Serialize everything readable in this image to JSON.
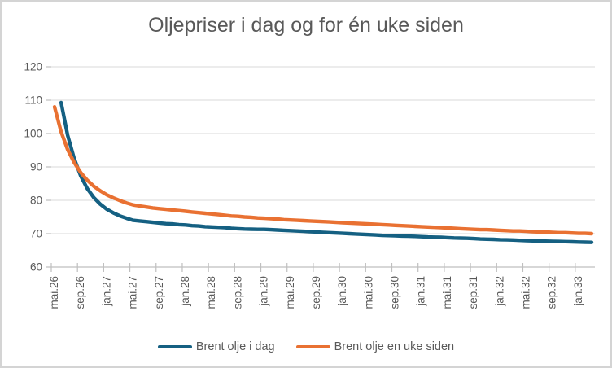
{
  "title": "Oljepriser i dag og for én uke siden",
  "colors": {
    "series_today": "#156082",
    "series_week_ago": "#E97132",
    "gridline": "#D9D9D9",
    "axis": "#BFBFBF",
    "text": "#595959",
    "chart_border": "#D4D4D4",
    "background": "#FFFFFF"
  },
  "legend": {
    "items": [
      {
        "label": "Brent olje i dag",
        "color": "#156082"
      },
      {
        "label": "Brent olje en uke siden",
        "color": "#E97132"
      }
    ]
  },
  "chart_data": {
    "type": "line",
    "title": "Oljepriser i dag og for én uke siden",
    "xlabel": "",
    "ylabel": "",
    "ylim": [
      60,
      120
    ],
    "y_ticks": [
      60,
      70,
      80,
      90,
      100,
      110,
      120
    ],
    "grid": "horizontal",
    "legend_position": "bottom",
    "x_tick_interval": 4,
    "x_tick_labels": [
      "mai.26",
      "sep.26",
      "jan.27",
      "mai.27",
      "sep.27",
      "jan.28",
      "mai.28",
      "sep.28",
      "jan.29",
      "mai.29",
      "sep.29",
      "jan.30",
      "mai.30",
      "sep.30",
      "jan.31",
      "mai.31",
      "sep.31",
      "jan.32",
      "mai.32",
      "sep.32",
      "jan.33"
    ],
    "categories": [
      "mai.26",
      "jun.26",
      "jul.26",
      "aug.26",
      "sep.26",
      "okt.26",
      "nov.26",
      "des.26",
      "jan.27",
      "feb.27",
      "mar.27",
      "apr.27",
      "mai.27",
      "jun.27",
      "jul.27",
      "aug.27",
      "sep.27",
      "okt.27",
      "nov.27",
      "des.27",
      "jan.28",
      "feb.28",
      "mar.28",
      "apr.28",
      "mai.28",
      "jun.28",
      "jul.28",
      "aug.28",
      "sep.28",
      "okt.28",
      "nov.28",
      "des.28",
      "jan.29",
      "feb.29",
      "mar.29",
      "apr.29",
      "mai.29",
      "jun.29",
      "jul.29",
      "aug.29",
      "sep.29",
      "okt.29",
      "nov.29",
      "des.29",
      "jan.30",
      "feb.30",
      "mar.30",
      "apr.30",
      "mai.30",
      "jun.30",
      "jul.30",
      "aug.30",
      "sep.30",
      "okt.30",
      "nov.30",
      "des.30",
      "jan.31",
      "feb.31",
      "mar.31",
      "apr.31",
      "mai.31",
      "jun.31",
      "jul.31",
      "aug.31",
      "sep.31",
      "okt.31",
      "nov.31",
      "des.31",
      "jan.32",
      "feb.32",
      "mar.32",
      "apr.32",
      "mai.32",
      "jun.32",
      "jul.32",
      "aug.32",
      "sep.32",
      "okt.32",
      "nov.32",
      "des.32",
      "jan.33",
      "feb.33",
      "mar.33"
    ],
    "series": [
      {
        "name": "Brent olje i dag",
        "color": "#156082",
        "values": [
          null,
          109.3,
          99.5,
          92.5,
          87.3,
          83.5,
          80.8,
          78.8,
          77.3,
          76.2,
          75.3,
          74.6,
          74.0,
          73.8,
          73.6,
          73.4,
          73.2,
          73.0,
          72.9,
          72.7,
          72.6,
          72.4,
          72.3,
          72.1,
          72.0,
          71.9,
          71.8,
          71.6,
          71.5,
          71.4,
          71.35,
          71.3,
          71.3,
          71.2,
          71.1,
          71.0,
          70.9,
          70.8,
          70.7,
          70.6,
          70.5,
          70.4,
          70.3,
          70.2,
          70.1,
          70.0,
          69.9,
          69.8,
          69.7,
          69.6,
          69.5,
          69.45,
          69.4,
          69.3,
          69.25,
          69.2,
          69.1,
          69.0,
          68.95,
          68.9,
          68.8,
          68.7,
          68.65,
          68.6,
          68.5,
          68.4,
          68.35,
          68.3,
          68.2,
          68.15,
          68.1,
          68.0,
          67.9,
          67.85,
          67.8,
          67.75,
          67.7,
          67.65,
          67.6,
          67.55,
          67.5,
          67.45,
          67.4
        ]
      },
      {
        "name": "Brent olje en uke siden",
        "color": "#E97132",
        "values": [
          108.0,
          100.5,
          95.2,
          91.3,
          88.3,
          86.0,
          84.2,
          82.8,
          81.6,
          80.7,
          79.9,
          79.2,
          78.6,
          78.3,
          78.0,
          77.7,
          77.5,
          77.3,
          77.1,
          76.9,
          76.7,
          76.5,
          76.3,
          76.1,
          75.9,
          75.7,
          75.5,
          75.3,
          75.2,
          75.0,
          74.9,
          74.7,
          74.6,
          74.5,
          74.4,
          74.2,
          74.1,
          74.0,
          73.9,
          73.8,
          73.7,
          73.6,
          73.5,
          73.4,
          73.3,
          73.2,
          73.1,
          73.0,
          72.9,
          72.8,
          72.7,
          72.6,
          72.5,
          72.4,
          72.3,
          72.2,
          72.1,
          72.0,
          71.9,
          71.8,
          71.7,
          71.6,
          71.5,
          71.4,
          71.3,
          71.2,
          71.2,
          71.1,
          71.0,
          70.9,
          70.8,
          70.8,
          70.7,
          70.6,
          70.5,
          70.5,
          70.4,
          70.3,
          70.3,
          70.2,
          70.1,
          70.1,
          70.0
        ]
      }
    ]
  }
}
